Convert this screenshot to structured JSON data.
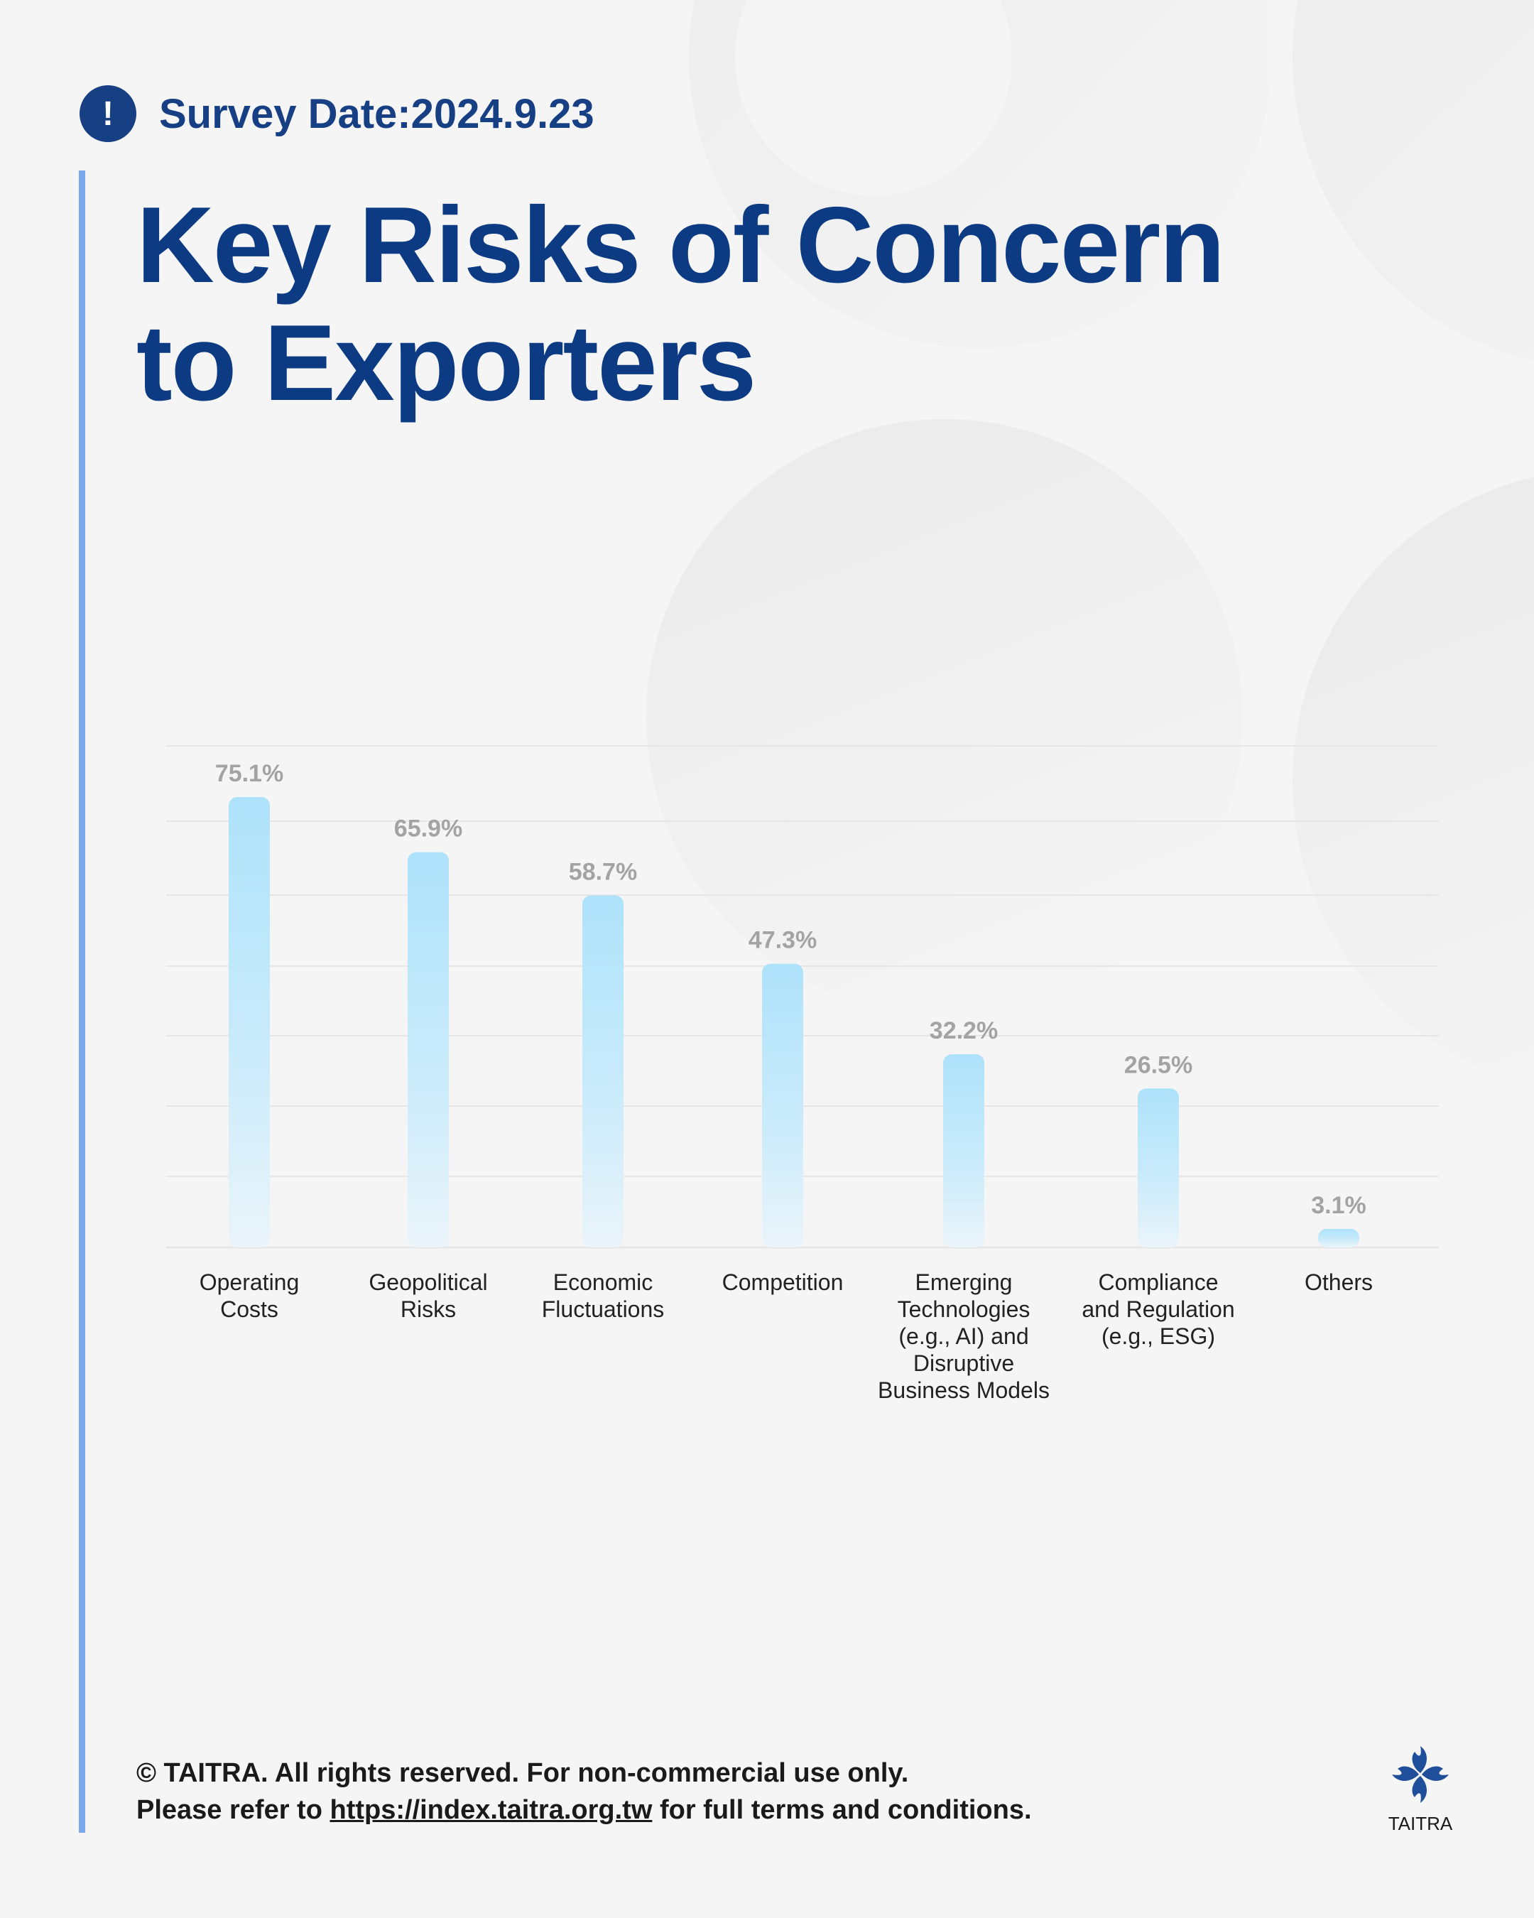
{
  "header": {
    "alert_icon_glyph": "!",
    "survey_date": "Survey Date:2024.9.23"
  },
  "title": {
    "line1": "Key Risks of Concern",
    "line2": "to Exporters"
  },
  "chart_data": {
    "type": "bar",
    "categories": [
      [
        "Operating",
        "Costs"
      ],
      [
        "Geopolitical",
        "Risks"
      ],
      [
        "Economic",
        "Fluctuations"
      ],
      [
        "Competition"
      ],
      [
        "Emerging",
        "Technologies",
        "(e.g., AI) and",
        "Disruptive",
        "Business Models"
      ],
      [
        "Compliance",
        "and Regulation",
        "(e.g., ESG)"
      ],
      [
        "Others"
      ]
    ],
    "values": [
      75.1,
      65.9,
      58.7,
      47.3,
      32.2,
      26.5,
      3.1
    ],
    "value_labels": [
      "75.1%",
      "65.9%",
      "58.7%",
      "47.3%",
      "32.2%",
      "26.5%",
      "3.1%"
    ],
    "unit": "%",
    "ylim": [
      0,
      75.1
    ],
    "grid": true,
    "colors": {
      "bar_top": "#aee2fb",
      "bar_bottom": "#eaf4fa",
      "value_label": "#a3a3a3",
      "grid": "#e6e6e6"
    }
  },
  "footer": {
    "line1": "© TAITRA. All rights reserved. For non-commercial use only.",
    "line2_prefix": "Please refer to ",
    "line2_url": "https://index.taitra.org.tw",
    "line2_suffix": " for full terms and conditions."
  },
  "logo": {
    "text": "TAITRA",
    "color": "#1f4f9a"
  },
  "colors": {
    "primary": "#0c3b84",
    "accent_line": "#7ba8ea",
    "background": "#f5f5f5"
  }
}
